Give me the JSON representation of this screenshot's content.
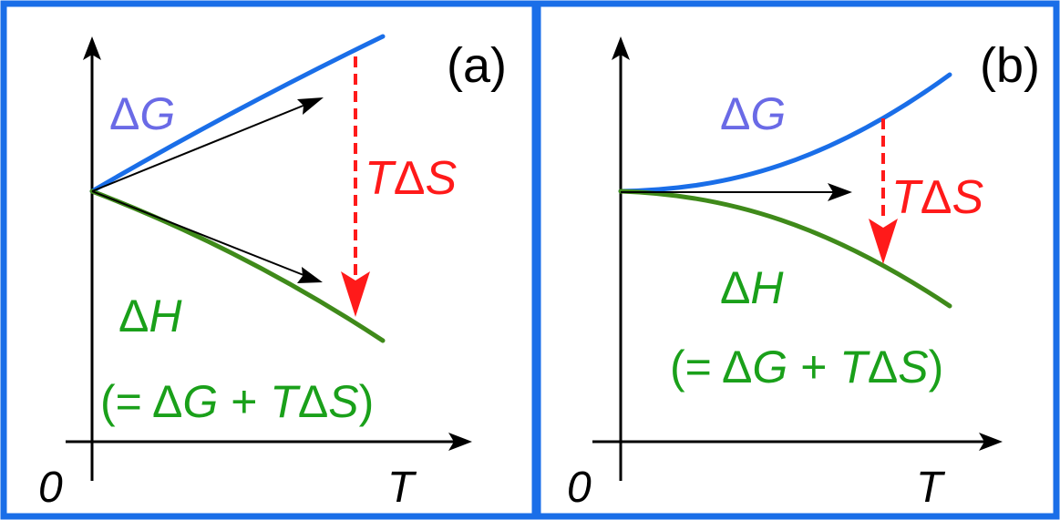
{
  "colors": {
    "frame": "#1a6ee8",
    "deltaG_curve": "#1a6ee8",
    "deltaG_label": "#6a6ae6",
    "deltaH_curve": "#3f8a1a",
    "deltaH_label": "#1aa01a",
    "tds": "#ff1a1a",
    "axis": "#000000"
  },
  "panel_a": {
    "tag": "(a)",
    "origin": "0",
    "x_axis_label": "T",
    "dg_label": {
      "delta": "Δ",
      "var": "G"
    },
    "dh_label": {
      "delta": "Δ",
      "var": "H"
    },
    "tds_label": {
      "t": "T",
      "delta": "Δ",
      "s": "S"
    },
    "equation": {
      "open": "(= Δ",
      "g": "G",
      "plus": " + ",
      "t": "T",
      "delta": "Δ",
      "s": "S",
      "close": ")"
    }
  },
  "panel_b": {
    "tag": "(b)",
    "origin": "0",
    "x_axis_label": "T",
    "dg_label": {
      "delta": "Δ",
      "var": "G"
    },
    "dh_label": {
      "delta": "Δ",
      "var": "H"
    },
    "tds_label": {
      "t": "T",
      "delta": "Δ",
      "s": "S"
    },
    "equation": {
      "open": "(= Δ",
      "g": "G",
      "plus": " + ",
      "t": "T",
      "delta": "Δ",
      "s": "S",
      "close": ")"
    }
  }
}
